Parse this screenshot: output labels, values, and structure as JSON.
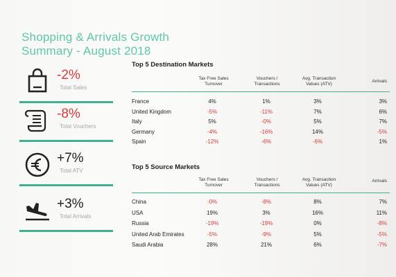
{
  "title": {
    "line1": "Shopping & Arrivals Growth",
    "line2": "Summary - August 2018"
  },
  "kpis": [
    {
      "value": "-2%",
      "label": "Total Sales",
      "icon": "shopping-bag-icon",
      "sign": "neg"
    },
    {
      "value": "-8%",
      "label": "Total Vouchers",
      "icon": "receipt-icon",
      "sign": "neg"
    },
    {
      "value": "+7%",
      "label": "Total ATV",
      "icon": "euro-icon",
      "sign": "pos"
    },
    {
      "value": "+3%",
      "label": "Total Arrivals",
      "icon": "plane-landing-icon",
      "sign": "pos"
    }
  ],
  "colors": {
    "accent": "#3fb08f",
    "title": "#5fc7a7",
    "negative": "#d63a3a"
  },
  "destination": {
    "title": "Top 5 Destination Markets",
    "headers": [
      "Tax Free Sales Turnover",
      "Vouchers / Transactions",
      "Avg. Transaction Values (ATV)",
      "Arrivals"
    ],
    "rows": [
      {
        "name": "France",
        "cells": [
          "4%",
          "1%",
          "3%",
          "3%"
        ]
      },
      {
        "name": "United Kingdom",
        "cells": [
          "-5%",
          "-11%",
          "7%",
          "6%"
        ]
      },
      {
        "name": "Italy",
        "cells": [
          "5%",
          "-0%",
          "5%",
          "7%"
        ]
      },
      {
        "name": "Germany",
        "cells": [
          "-4%",
          "-16%",
          "14%",
          "-5%"
        ]
      },
      {
        "name": "Spain",
        "cells": [
          "-12%",
          "-6%",
          "-6%",
          "1%"
        ]
      }
    ]
  },
  "source": {
    "title": "Top 5 Source Markets",
    "headers": [
      "Tax Free Sales Turnover",
      "Vouchers / Transactions",
      "Avg. Transaction Values (ATV)",
      "Arrivals"
    ],
    "rows": [
      {
        "name": "China",
        "cells": [
          "-0%",
          "-8%",
          "8%",
          "7%"
        ]
      },
      {
        "name": "USA",
        "cells": [
          "19%",
          "3%",
          "16%",
          "11%"
        ]
      },
      {
        "name": "Russia",
        "cells": [
          "-19%",
          "-19%",
          "0%",
          "-8%"
        ]
      },
      {
        "name": "United Arab Emirates",
        "cells": [
          "-5%",
          "-9%",
          "5%",
          "-5%"
        ]
      },
      {
        "name": "Saudi Arabia",
        "cells": [
          "28%",
          "21%",
          "6%",
          "-7%"
        ]
      }
    ]
  }
}
